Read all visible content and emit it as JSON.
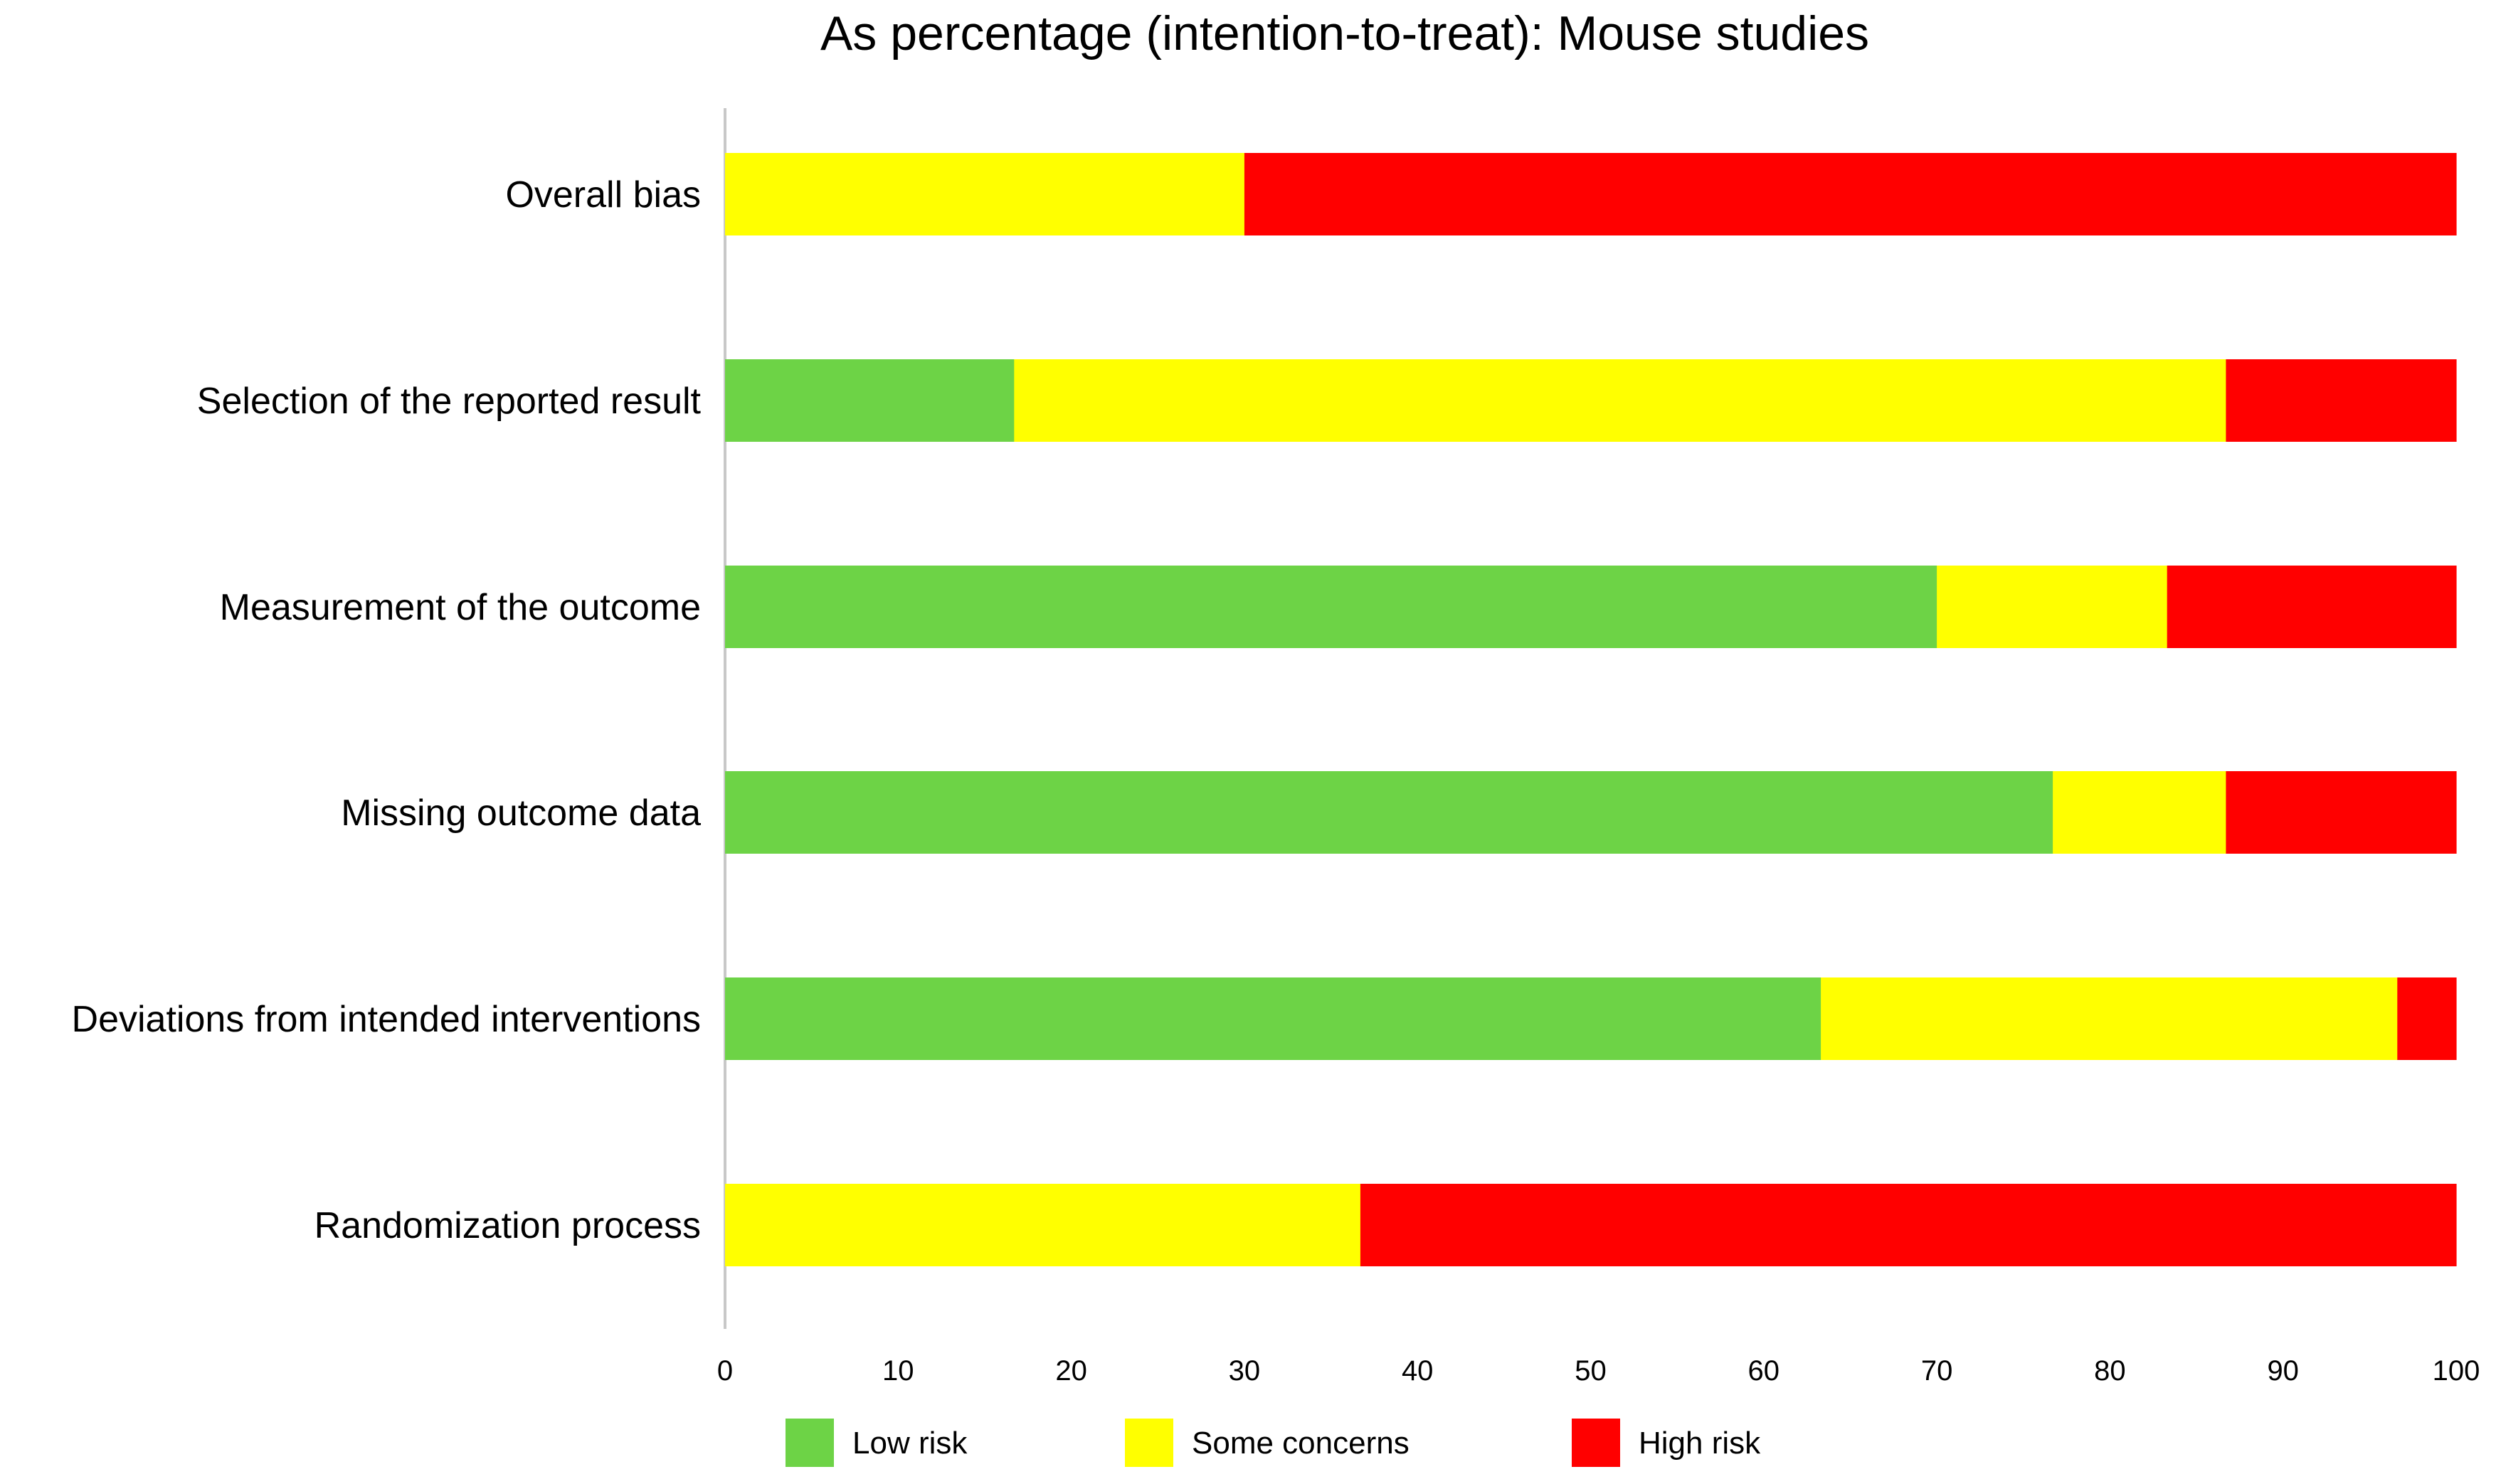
{
  "chart_data": {
    "type": "bar",
    "orientation": "horizontal",
    "stacked": true,
    "title": "As percentage (intention-to-treat): Mouse studies",
    "xlabel": "",
    "ylabel": "",
    "xlim": [
      0,
      100
    ],
    "x_ticks": [
      "0",
      "10",
      "20",
      "30",
      "40",
      "50",
      "60",
      "70",
      "80",
      "90",
      "100"
    ],
    "grid": false,
    "legend_position": "bottom",
    "categories": [
      "Overall bias",
      "Selection of the reported result",
      "Measurement of the outcome",
      "Missing outcome data",
      "Deviations from intended interventions",
      "Randomization process"
    ],
    "series": [
      {
        "name": "Low risk",
        "color": "#6dd346",
        "values": [
          0,
          16.7,
          70,
          76.7,
          63.3,
          0
        ]
      },
      {
        "name": "Some concerns",
        "color": "#ffff00",
        "values": [
          30,
          70,
          13.3,
          10,
          33.3,
          36.7
        ]
      },
      {
        "name": "High risk",
        "color": "#ff0000",
        "values": [
          70,
          13.3,
          16.7,
          13.3,
          3.4,
          63.3
        ]
      }
    ]
  }
}
